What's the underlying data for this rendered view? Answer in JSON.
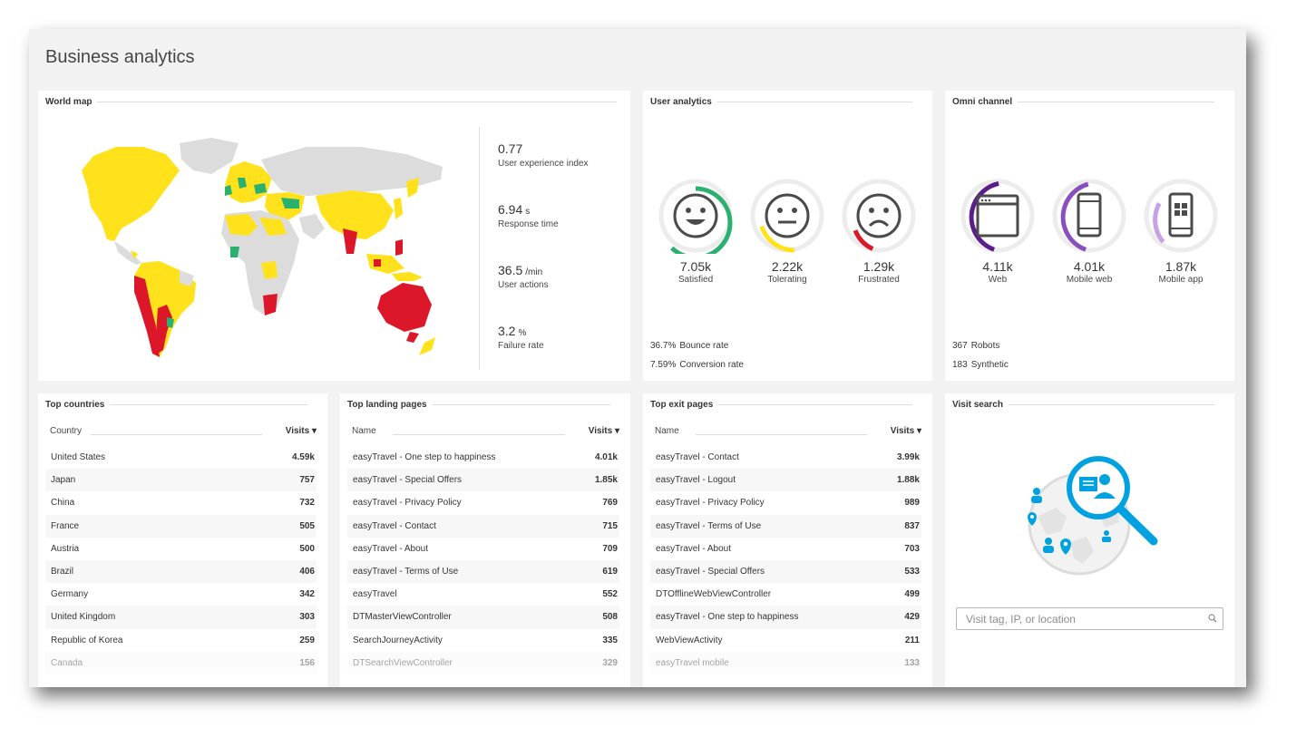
{
  "page": {
    "title": "Business analytics"
  },
  "world_map": {
    "title": "World map",
    "kpis": [
      {
        "value": "0.77",
        "unit": "",
        "label": "User experience index"
      },
      {
        "value": "6.94",
        "unit": "s",
        "label": "Response time"
      },
      {
        "value": "36.5",
        "unit": "/min",
        "label": "User actions"
      },
      {
        "value": "3.2",
        "unit": "%",
        "label": "Failure rate"
      }
    ],
    "colors": {
      "satisfied": "#ffe11c",
      "tolerating": "#2ab06f",
      "frustrated": "#dc172a",
      "no_data": "#dcdcdc"
    }
  },
  "user_analytics": {
    "title": "User analytics",
    "gauges": [
      {
        "value": "7.05k",
        "label": "Satisfied",
        "fraction": 0.62,
        "color": "#2ab06f",
        "icon": "smile-face-icon"
      },
      {
        "value": "2.22k",
        "label": "Tolerating",
        "fraction": 0.2,
        "color": "#ffe11c",
        "icon": "neutral-face-icon"
      },
      {
        "value": "1.29k",
        "label": "Frustrated",
        "fraction": 0.12,
        "color": "#dc172a",
        "icon": "sad-face-icon"
      }
    ],
    "stats": [
      {
        "value": "36.7%",
        "label": "Bounce rate"
      },
      {
        "value": "7.59%",
        "label": "Conversion rate"
      }
    ]
  },
  "omni_channel": {
    "title": "Omni channel",
    "gauges": [
      {
        "value": "4.11k",
        "label": "Web",
        "fraction": 0.41,
        "color": "#5b1c8c",
        "icon": "browser-window-icon"
      },
      {
        "value": "4.01k",
        "label": "Mobile web",
        "fraction": 0.4,
        "color": "#8a4fbf",
        "icon": "mobile-phone-icon"
      },
      {
        "value": "1.87k",
        "label": "Mobile app",
        "fraction": 0.19,
        "color": "#c7a2e6",
        "icon": "mobile-app-icon"
      }
    ],
    "stats": [
      {
        "value": "367",
        "label": "Robots"
      },
      {
        "value": "183",
        "label": "Synthetic"
      }
    ]
  },
  "top_countries": {
    "title": "Top countries",
    "col_name": "Country",
    "col_value": "Visits ▾",
    "rows": [
      {
        "name": "United States",
        "value": "4.59k"
      },
      {
        "name": "Japan",
        "value": "757"
      },
      {
        "name": "China",
        "value": "732"
      },
      {
        "name": "France",
        "value": "505"
      },
      {
        "name": "Austria",
        "value": "500"
      },
      {
        "name": "Brazil",
        "value": "406"
      },
      {
        "name": "Germany",
        "value": "342"
      },
      {
        "name": "United Kingdom",
        "value": "303"
      },
      {
        "name": "Republic of Korea",
        "value": "259"
      },
      {
        "name": "Canada",
        "value": "156"
      }
    ]
  },
  "top_landing_pages": {
    "title": "Top landing pages",
    "col_name": "Name",
    "col_value": "Visits ▾",
    "rows": [
      {
        "name": "easyTravel - One step to happiness",
        "value": "4.01k"
      },
      {
        "name": "easyTravel - Special Offers",
        "value": "1.85k"
      },
      {
        "name": "easyTravel - Privacy Policy",
        "value": "769"
      },
      {
        "name": "easyTravel - Contact",
        "value": "715"
      },
      {
        "name": "easyTravel - About",
        "value": "709"
      },
      {
        "name": "easyTravel - Terms of Use",
        "value": "619"
      },
      {
        "name": "easyTravel",
        "value": "552"
      },
      {
        "name": "DTMasterViewController",
        "value": "508"
      },
      {
        "name": "SearchJourneyActivity",
        "value": "335"
      },
      {
        "name": "DTSearchViewController",
        "value": "329"
      }
    ]
  },
  "top_exit_pages": {
    "title": "Top exit pages",
    "col_name": "Name",
    "col_value": "Visits ▾",
    "rows": [
      {
        "name": "easyTravel - Contact",
        "value": "3.99k"
      },
      {
        "name": "easyTravel - Logout",
        "value": "1.88k"
      },
      {
        "name": "easyTravel - Privacy Policy",
        "value": "989"
      },
      {
        "name": "easyTravel - Terms of Use",
        "value": "837"
      },
      {
        "name": "easyTravel - About",
        "value": "703"
      },
      {
        "name": "easyTravel - Special Offers",
        "value": "533"
      },
      {
        "name": "DTOfflineWebViewController",
        "value": "499"
      },
      {
        "name": "easyTravel - One step to happiness",
        "value": "429"
      },
      {
        "name": "WebViewActivity",
        "value": "211"
      },
      {
        "name": "easyTravel mobile",
        "value": "133"
      }
    ]
  },
  "visit_search": {
    "title": "Visit search",
    "placeholder": "Visit tag, IP, or location",
    "icon": "search-icon",
    "illustration": "visit-search-illustration"
  }
}
